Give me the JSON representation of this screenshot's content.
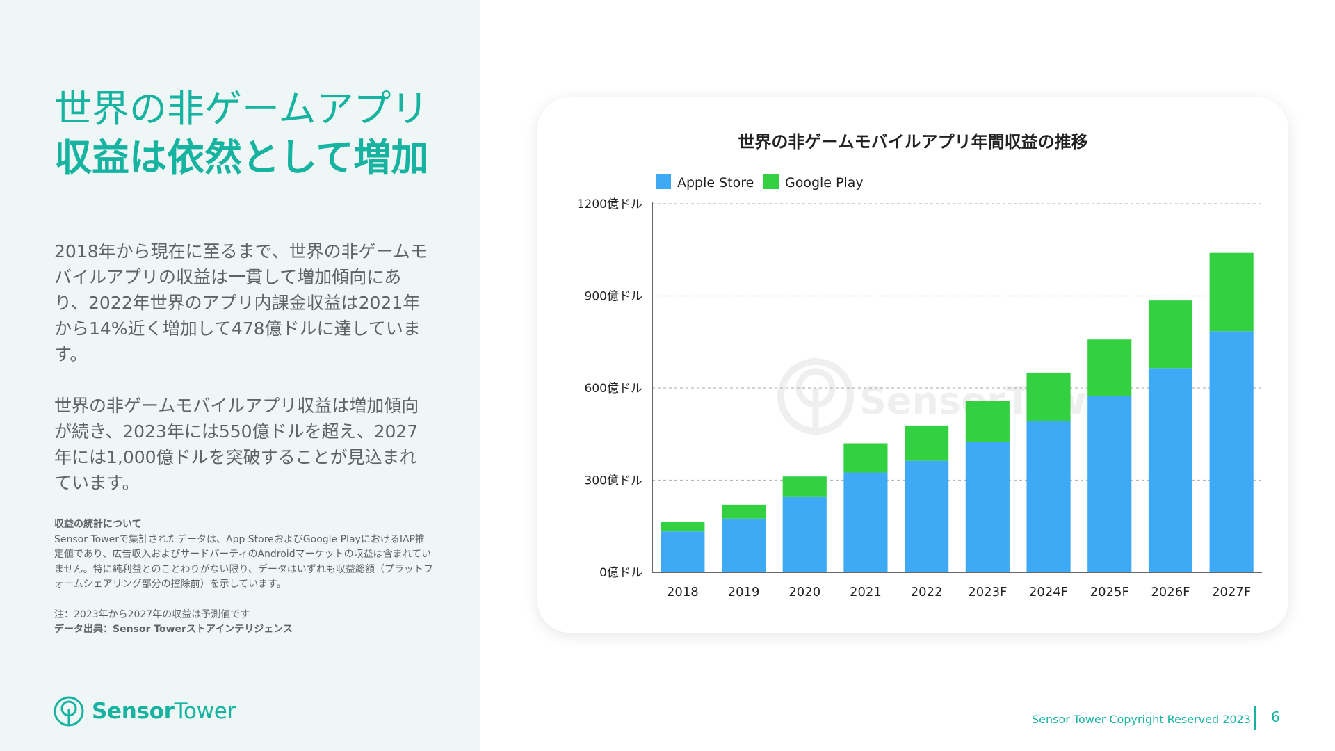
{
  "slide": {
    "headline_line1": "世界の非ゲームアプリ",
    "headline_line2": "収益は依然として増加",
    "paragraph1": "2018年から現在に至るまで、世界の非ゲームモバイルアプリの収益は一貫して増加傾向にあり、2022年世界のアプリ内課金収益は2021年から14%近く増加して478億ドルに達しています。",
    "paragraph2": "世界の非ゲームモバイルアプリ収益は増加傾向が続き、2023年には550億ドルを超え、2027年には1,000億ドルを突破することが見込まれています。",
    "notes_title": "収益の統計について",
    "notes_body": "Sensor Towerで集計されたデータは、App StoreおよびGoogle PlayにおけるIAP推定値であり、広告収入およびサードパーティのAndroidマーケットの収益は含まれていません。特に純利益とのことわりがない限り、データはいずれも収益総額（プラットフォームシェアリング部分の控除前）を示しています。",
    "note_forecast": "注：2023年から2027年の収益は予測値です",
    "data_source": "データ出典：Sensor Towerストアインテリジェンス",
    "logo_sensor": "Sensor",
    "logo_tower": "Tower",
    "footer_copyright": "Sensor Tower Copyright Reserved 2023",
    "page_number": "6",
    "watermark_text": "SensorTower"
  },
  "colors": {
    "accent": "#17b3a1",
    "apple": "#3ea9f5",
    "google": "#33d142",
    "background_left": "#eef7f6"
  },
  "chart_data": {
    "type": "bar",
    "stacked": true,
    "title": "世界の非ゲームモバイルアプリ年間収益の推移",
    "categories": [
      "2018",
      "2019",
      "2020",
      "2021",
      "2022",
      "2023F",
      "2024F",
      "2025F",
      "2026F",
      "2027F"
    ],
    "series": [
      {
        "name": "Apple Store",
        "color": "#3ea9f5",
        "values": [
          133,
          175,
          245,
          325,
          363,
          425,
          493,
          575,
          665,
          785
        ]
      },
      {
        "name": "Google Play",
        "color": "#33d142",
        "values": [
          32,
          45,
          67,
          95,
          115,
          133,
          157,
          183,
          220,
          255
        ]
      }
    ],
    "ylim": [
      0,
      1200
    ],
    "yticks": [
      0,
      300,
      600,
      900,
      1200
    ],
    "ytick_labels": [
      "0億ドル",
      "300億ドル",
      "600億ドル",
      "900億ドル",
      "1200億ドル"
    ],
    "xlabel": "",
    "ylabel": "",
    "grid": true,
    "legend_position": "top-left"
  }
}
